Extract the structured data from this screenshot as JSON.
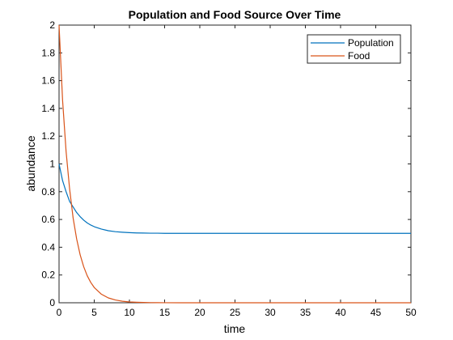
{
  "chart_data": {
    "type": "line",
    "title": "Population and Food Source Over Time",
    "xlabel": "time",
    "ylabel": "abundance",
    "xlim": [
      0,
      50
    ],
    "ylim": [
      0,
      2
    ],
    "xticks": [
      "0",
      "5",
      "10",
      "15",
      "20",
      "25",
      "30",
      "35",
      "40",
      "45",
      "50"
    ],
    "yticks": [
      "0",
      "0.2",
      "0.4",
      "0.6",
      "0.8",
      "1",
      "1.2",
      "1.4",
      "1.6",
      "1.8",
      "2"
    ],
    "grid": false,
    "legend_position": "top-right",
    "x": [
      0,
      0.5,
      1,
      1.5,
      2,
      2.5,
      3,
      3.5,
      4,
      4.5,
      5,
      6,
      7,
      8,
      9,
      10,
      11,
      12,
      13,
      14,
      15,
      17.5,
      20,
      25,
      30,
      35,
      40,
      45,
      50
    ],
    "series": [
      {
        "name": "Population",
        "color": "#0072bd",
        "values": [
          1,
          0.88,
          0.8,
          0.73,
          0.69,
          0.65,
          0.62,
          0.595,
          0.575,
          0.56,
          0.548,
          0.531,
          0.519,
          0.512,
          0.508,
          0.505,
          0.503,
          0.502,
          0.501,
          0.501,
          0.5,
          0.5,
          0.5,
          0.5,
          0.5,
          0.5,
          0.5,
          0.5,
          0.5
        ]
      },
      {
        "name": "Food",
        "color": "#d95319",
        "values": [
          2,
          1.46,
          1.09,
          0.82,
          0.61,
          0.46,
          0.345,
          0.26,
          0.195,
          0.147,
          0.11,
          0.062,
          0.035,
          0.02,
          0.011,
          0.006,
          0.0035,
          0.002,
          0.001,
          0.0006,
          0.0003,
          0.0001,
          0,
          0,
          0,
          0,
          0,
          0,
          0
        ]
      }
    ]
  }
}
